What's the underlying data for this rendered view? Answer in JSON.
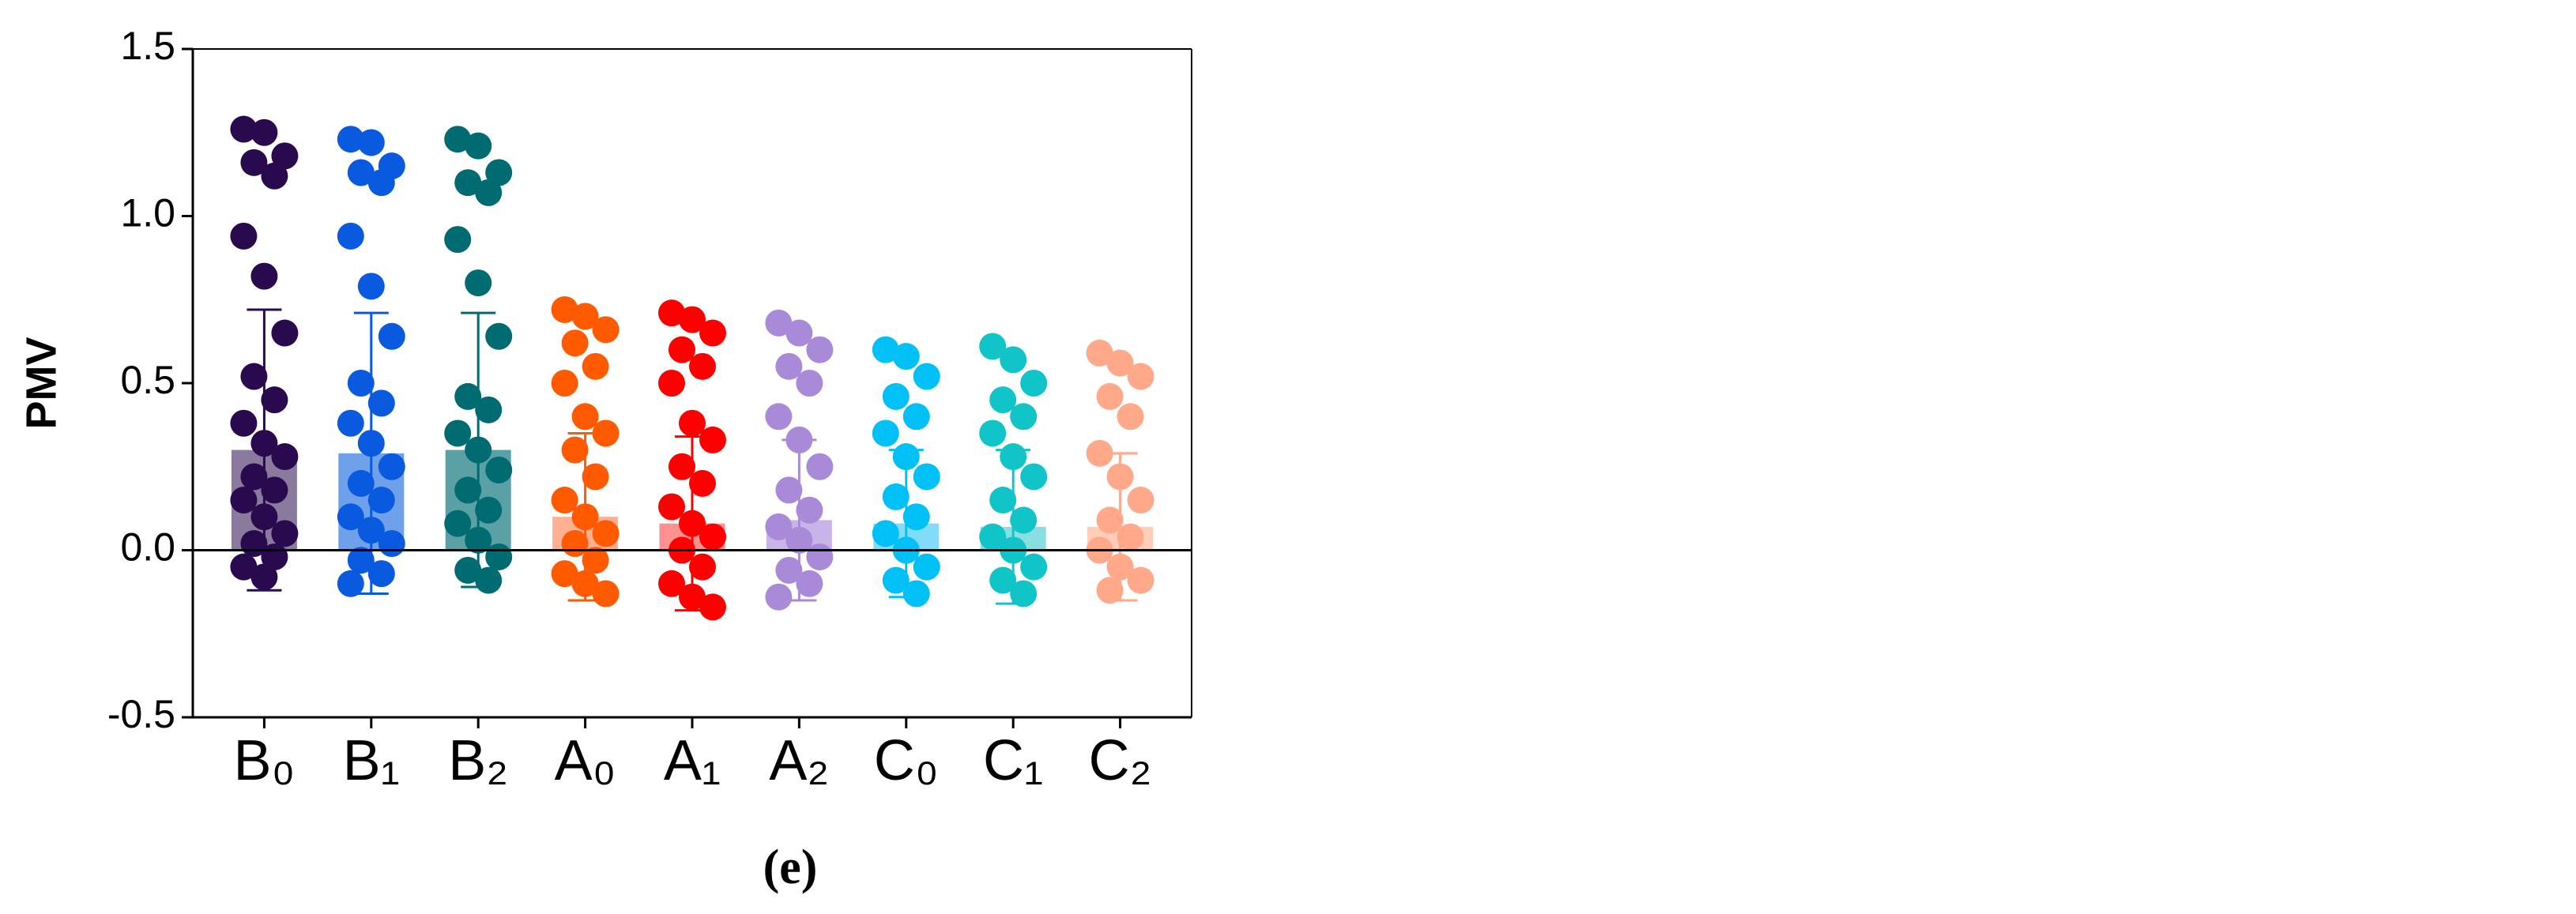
{
  "chart_data": {
    "type": "bar",
    "caption": "(e)",
    "y_label": "PMV",
    "categories": [
      "B₀",
      "B₁",
      "B₂",
      "A₀",
      "A₁",
      "A₂",
      "C₀",
      "C₁",
      "C₂"
    ],
    "values": [
      0.3,
      0.29,
      0.3,
      0.1,
      0.08,
      0.09,
      0.08,
      0.07,
      0.07
    ],
    "errors": [
      0.42,
      0.42,
      0.41,
      0.25,
      0.26,
      0.24,
      0.22,
      0.23,
      0.22
    ],
    "colors": [
      "#2a0a4f",
      "#0a5ae0",
      "#006b70",
      "#ff5a00",
      "#ff0000",
      "#a88ad8",
      "#00c0f5",
      "#10c4c8",
      "#ffa88a"
    ],
    "bar_colors": [
      "#8a7a9e",
      "#6fa0ea",
      "#5aa0a5",
      "#ffb090",
      "#ff9090",
      "#c9b4e8",
      "#80dcf8",
      "#88dee0",
      "#ffcdb8"
    ],
    "points": [
      [
        1.26,
        1.25,
        1.18,
        1.16,
        1.12,
        0.94,
        0.82,
        0.65,
        0.52,
        0.45,
        0.38,
        0.32,
        0.28,
        0.22,
        0.18,
        0.15,
        0.1,
        0.05,
        0.02,
        -0.02,
        -0.05,
        -0.08
      ],
      [
        1.23,
        1.22,
        1.15,
        1.13,
        1.1,
        0.94,
        0.79,
        0.64,
        0.5,
        0.44,
        0.38,
        0.32,
        0.25,
        0.2,
        0.15,
        0.1,
        0.06,
        0.02,
        -0.03,
        -0.07,
        -0.1
      ],
      [
        1.23,
        1.21,
        1.13,
        1.1,
        1.07,
        0.93,
        0.8,
        0.64,
        0.46,
        0.42,
        0.35,
        0.3,
        0.24,
        0.18,
        0.12,
        0.08,
        0.03,
        -0.02,
        -0.06,
        -0.09
      ],
      [
        0.72,
        0.7,
        0.66,
        0.62,
        0.55,
        0.5,
        0.4,
        0.35,
        0.3,
        0.22,
        0.15,
        0.1,
        0.05,
        0.02,
        -0.03,
        -0.07,
        -0.1,
        -0.13
      ],
      [
        0.71,
        0.69,
        0.65,
        0.6,
        0.55,
        0.5,
        0.38,
        0.33,
        0.25,
        0.2,
        0.13,
        0.08,
        0.04,
        0.0,
        -0.05,
        -0.1,
        -0.14,
        -0.17
      ],
      [
        0.68,
        0.65,
        0.6,
        0.55,
        0.5,
        0.4,
        0.33,
        0.25,
        0.18,
        0.12,
        0.07,
        0.03,
        -0.02,
        -0.06,
        -0.1,
        -0.14
      ],
      [
        0.6,
        0.58,
        0.52,
        0.46,
        0.4,
        0.35,
        0.28,
        0.22,
        0.16,
        0.1,
        0.05,
        0.0,
        -0.05,
        -0.09,
        -0.13
      ],
      [
        0.61,
        0.57,
        0.5,
        0.45,
        0.4,
        0.35,
        0.28,
        0.22,
        0.15,
        0.09,
        0.04,
        0.0,
        -0.05,
        -0.09,
        -0.13
      ],
      [
        0.59,
        0.56,
        0.52,
        0.46,
        0.4,
        0.29,
        0.22,
        0.15,
        0.09,
        0.04,
        0.0,
        -0.05,
        -0.09,
        -0.12
      ]
    ],
    "ylim": [
      -0.5,
      1.5
    ],
    "yticks": [
      -0.5,
      {
        "value": 0,
        "label": "0.0"
      },
      0.5,
      {
        "value": 1,
        "label": "1.0"
      },
      1.5
    ]
  }
}
